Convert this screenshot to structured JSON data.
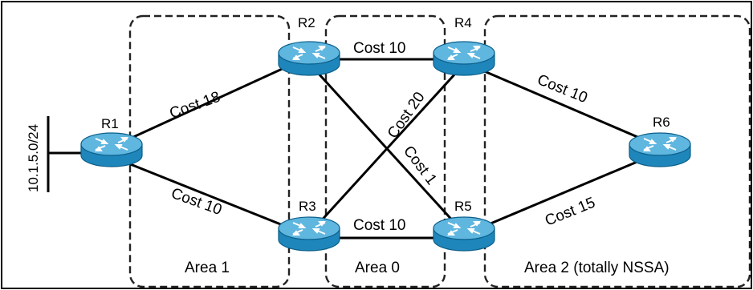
{
  "network": {
    "prefix": "10.1.5.0/24"
  },
  "routers": [
    {
      "id": "r1",
      "label": "R1"
    },
    {
      "id": "r2",
      "label": "R2"
    },
    {
      "id": "r3",
      "label": "R3"
    },
    {
      "id": "r4",
      "label": "R4"
    },
    {
      "id": "r5",
      "label": "R5"
    },
    {
      "id": "r6",
      "label": "R6"
    }
  ],
  "links": [
    {
      "from": "R1",
      "to": "R2",
      "label": "Cost 18"
    },
    {
      "from": "R1",
      "to": "R3",
      "label": "Cost 10"
    },
    {
      "from": "R2",
      "to": "R4",
      "label": "Cost 10"
    },
    {
      "from": "R3",
      "to": "R4",
      "label": "Cost 20"
    },
    {
      "from": "R2",
      "to": "R5",
      "label": "Cost 1"
    },
    {
      "from": "R3",
      "to": "R5",
      "label": "Cost 10"
    },
    {
      "from": "R4",
      "to": "R6",
      "label": "Cost 10"
    },
    {
      "from": "R5",
      "to": "R6",
      "label": "Cost 15"
    }
  ],
  "areas": [
    {
      "label": "Area 1"
    },
    {
      "label": "Area 0"
    },
    {
      "label": "Area 2 (totally NSSA)"
    }
  ],
  "colors": {
    "router_body": "#2a93c6",
    "router_top": "#7cc8ea",
    "router_edge": "#0b5f8a",
    "router_arrows": "#ffffff"
  }
}
